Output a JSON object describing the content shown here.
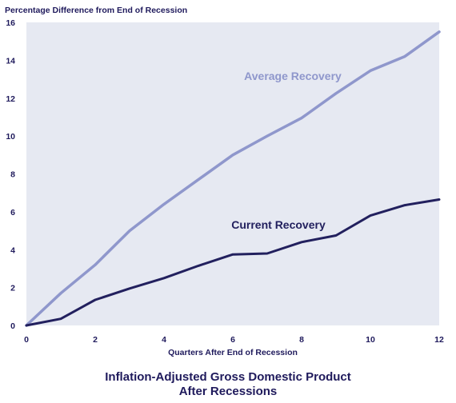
{
  "chart_data": {
    "type": "line",
    "title": "Inflation-Adjusted Gross Domestic Product",
    "subtitle": "After Recessions",
    "ylabel": "Percentage Difference from End of Recession",
    "xlabel": "Quarters After End of Recession",
    "xlim": [
      0,
      12
    ],
    "ylim": [
      0,
      16
    ],
    "xticks": [
      0,
      2,
      4,
      6,
      8,
      10,
      12
    ],
    "yticks": [
      0,
      2,
      4,
      6,
      8,
      10,
      12,
      14,
      16
    ],
    "grid": false,
    "x": [
      0,
      1,
      2,
      3,
      4,
      5,
      6,
      7,
      8,
      9,
      10,
      11,
      12
    ],
    "series": [
      {
        "name": "Average Recovery",
        "color": "#8f97cc",
        "values": [
          0,
          1.7,
          3.2,
          5.0,
          6.4,
          7.7,
          9.0,
          10.0,
          10.95,
          12.25,
          13.45,
          14.2,
          15.5
        ]
      },
      {
        "name": "Current Recovery",
        "color": "#22205e",
        "values": [
          0,
          0.35,
          1.35,
          1.95,
          2.5,
          3.15,
          3.75,
          3.8,
          4.4,
          4.75,
          5.8,
          6.35,
          6.65
        ]
      }
    ],
    "colors": {
      "plot_background": "#e6e9f2",
      "text": "#1f1a5c"
    }
  }
}
